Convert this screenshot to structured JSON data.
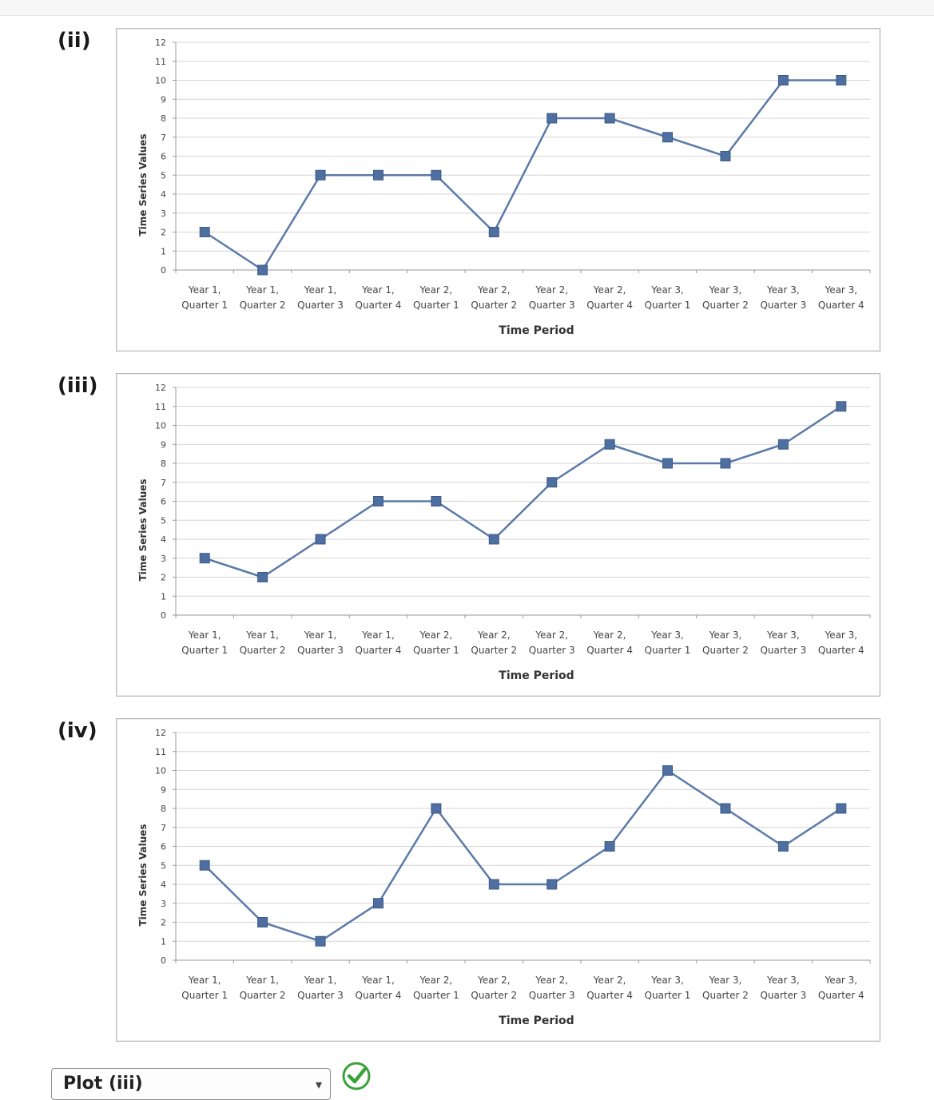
{
  "charts": [
    {
      "label": "(ii)"
    },
    {
      "label": "(iii)"
    },
    {
      "label": "(iv)"
    }
  ],
  "answer": {
    "selected": "Plot (iii)"
  },
  "colors": {
    "line": "#5b7aa8",
    "marker": "#4f6fa0",
    "grid": "#d4d4d4",
    "text": "#444444"
  },
  "icons": {
    "correct": "green-check-icon",
    "dropdown": "chevron-down-icon"
  },
  "chart_data": [
    {
      "type": "line",
      "categories": [
        [
          "Year 1,",
          "Quarter 1"
        ],
        [
          "Year 1,",
          "Quarter 2"
        ],
        [
          "Year 1,",
          "Quarter 3"
        ],
        [
          "Year 1,",
          "Quarter 4"
        ],
        [
          "Year 2,",
          "Quarter 1"
        ],
        [
          "Year 2,",
          "Quarter 2"
        ],
        [
          "Year 2,",
          "Quarter 3"
        ],
        [
          "Year 2,",
          "Quarter 4"
        ],
        [
          "Year 3,",
          "Quarter 1"
        ],
        [
          "Year 3,",
          "Quarter 2"
        ],
        [
          "Year 3,",
          "Quarter 3"
        ],
        [
          "Year 3,",
          "Quarter 4"
        ]
      ],
      "values": [
        2,
        0,
        5,
        5,
        5,
        2,
        8,
        8,
        7,
        6,
        10,
        10
      ],
      "xlabel": "Time Period",
      "ylabel": "Time Series Values",
      "ylim": [
        0,
        12
      ],
      "yticks": [
        0,
        1,
        2,
        3,
        4,
        5,
        6,
        7,
        8,
        9,
        10,
        11,
        12
      ],
      "grid": true
    },
    {
      "type": "line",
      "categories": [
        [
          "Year 1,",
          "Quarter 1"
        ],
        [
          "Year 1,",
          "Quarter 2"
        ],
        [
          "Year 1,",
          "Quarter 3"
        ],
        [
          "Year 1,",
          "Quarter 4"
        ],
        [
          "Year 2,",
          "Quarter 1"
        ],
        [
          "Year 2,",
          "Quarter 2"
        ],
        [
          "Year 2,",
          "Quarter 3"
        ],
        [
          "Year 2,",
          "Quarter 4"
        ],
        [
          "Year 3,",
          "Quarter 1"
        ],
        [
          "Year 3,",
          "Quarter 2"
        ],
        [
          "Year 3,",
          "Quarter 3"
        ],
        [
          "Year 3,",
          "Quarter 4"
        ]
      ],
      "values": [
        3,
        2,
        4,
        6,
        6,
        4,
        7,
        9,
        8,
        8,
        9,
        11
      ],
      "xlabel": "Time Period",
      "ylabel": "Time Series Values",
      "ylim": [
        0,
        12
      ],
      "yticks": [
        0,
        1,
        2,
        3,
        4,
        5,
        6,
        7,
        8,
        9,
        10,
        11,
        12
      ],
      "grid": true
    },
    {
      "type": "line",
      "categories": [
        [
          "Year 1,",
          "Quarter 1"
        ],
        [
          "Year 1,",
          "Quarter 2"
        ],
        [
          "Year 1,",
          "Quarter 3"
        ],
        [
          "Year 1,",
          "Quarter 4"
        ],
        [
          "Year 2,",
          "Quarter 1"
        ],
        [
          "Year 2,",
          "Quarter 2"
        ],
        [
          "Year 2,",
          "Quarter 3"
        ],
        [
          "Year 2,",
          "Quarter 4"
        ],
        [
          "Year 3,",
          "Quarter 1"
        ],
        [
          "Year 3,",
          "Quarter 2"
        ],
        [
          "Year 3,",
          "Quarter 3"
        ],
        [
          "Year 3,",
          "Quarter 4"
        ]
      ],
      "values": [
        5,
        2,
        1,
        3,
        8,
        4,
        4,
        6,
        10,
        8,
        6,
        8
      ],
      "xlabel": "Time Period",
      "ylabel": "Time Series Values",
      "ylim": [
        0,
        12
      ],
      "yticks": [
        0,
        1,
        2,
        3,
        4,
        5,
        6,
        7,
        8,
        9,
        10,
        11,
        12
      ],
      "grid": true
    }
  ]
}
